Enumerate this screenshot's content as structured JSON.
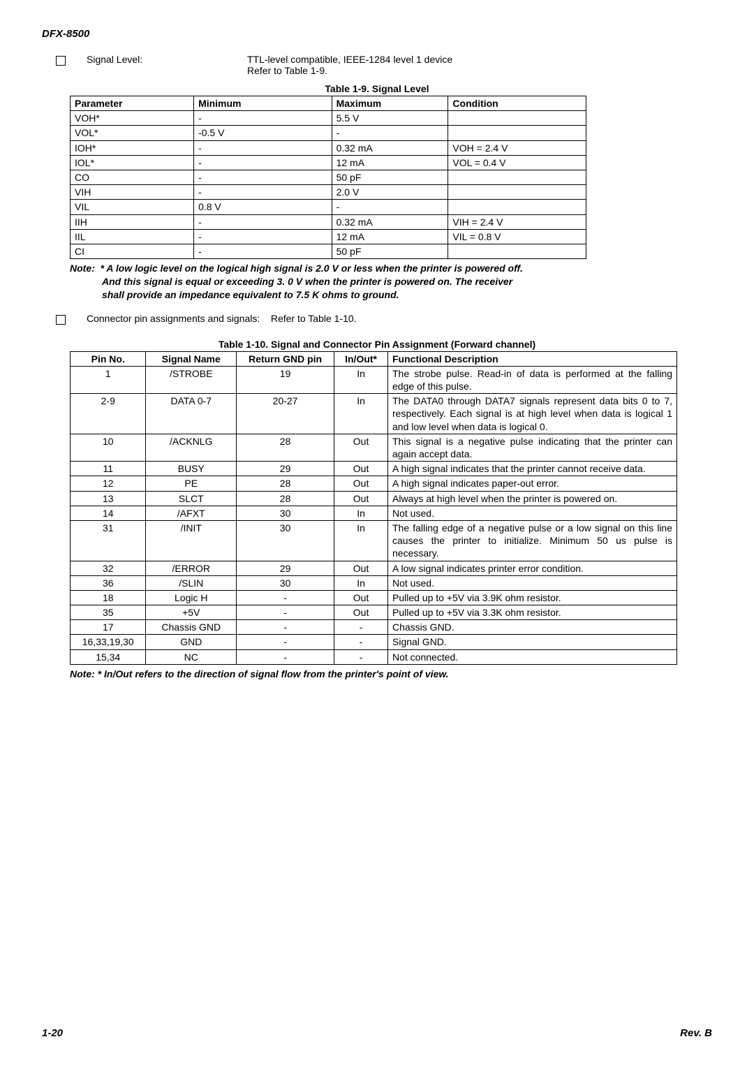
{
  "doc": {
    "header": "DFX-8500",
    "page_no": "1-20",
    "rev": "Rev. B"
  },
  "signal_level": {
    "label": "Signal Level:",
    "desc_l1": "TTL-level compatible, IEEE-1284 level 1 device",
    "desc_l2": "Refer to Table 1-9."
  },
  "table1": {
    "title": "Table 1-9. Signal Level",
    "headers": [
      "Parameter",
      "Minimum",
      "Maximum",
      "Condition"
    ],
    "rows": [
      [
        "VOH*",
        "-",
        "5.5 V",
        ""
      ],
      [
        "VOL*",
        "-0.5 V",
        "-",
        ""
      ],
      [
        "IOH*",
        "-",
        "0.32 mA",
        "VOH = 2.4 V"
      ],
      [
        "IOL*",
        "-",
        "12 mA",
        "VOL = 0.4 V"
      ],
      [
        "CO",
        "-",
        "50 pF",
        ""
      ],
      [
        "VIH",
        "-",
        "2.0 V",
        ""
      ],
      [
        "VIL",
        "0.8 V",
        "-",
        ""
      ],
      [
        "IIH",
        "-",
        "0.32 mA",
        "VIH = 2.4 V"
      ],
      [
        "IIL",
        "-",
        "12 mA",
        "VIL = 0.8 V"
      ],
      [
        "CI",
        "-",
        "50 pF",
        ""
      ]
    ],
    "note_lead": "Note:",
    "note_l1": "* A low logic level on the logical high signal is 2.0 V or less when the printer is powered off.",
    "note_l2": "And this signal is equal or exceeding 3. 0 V when the printer is powered on. The receiver",
    "note_l3": "shall provide an impedance equivalent to 7.5 K ohms to ground."
  },
  "connector": {
    "label": "Connector pin assignments and signals:",
    "desc": "Refer to Table 1-10."
  },
  "table2": {
    "title": "Table 1-10. Signal and Connector Pin Assignment (Forward channel)",
    "headers": [
      "Pin No.",
      "Signal Name",
      "Return GND pin",
      "In/Out*",
      "Functional Description"
    ],
    "rows": [
      [
        "1",
        "/STROBE",
        "19",
        "In",
        "The strobe pulse. Read-in of data is performed at the falling edge of this pulse."
      ],
      [
        "2-9",
        "DATA 0-7",
        "20-27",
        "In",
        "The DATA0 through DATA7 signals represent data bits 0 to 7, respectively. Each signal is at high level when data is logical 1 and low level when data is logical 0."
      ],
      [
        "10",
        "/ACKNLG",
        "28",
        "Out",
        "This signal is a negative pulse indicating that the printer can again accept data."
      ],
      [
        "11",
        "BUSY",
        "29",
        "Out",
        "A high signal indicates that the printer cannot receive data."
      ],
      [
        "12",
        "PE",
        "28",
        "Out",
        "A high signal indicates paper-out error."
      ],
      [
        "13",
        "SLCT",
        "28",
        "Out",
        "Always at high level when the printer is powered on."
      ],
      [
        "14",
        "/AFXT",
        "30",
        "In",
        "Not used."
      ],
      [
        "31",
        "/INIT",
        "30",
        "In",
        "The falling edge of a negative pulse or a low signal on this line causes the printer to initialize. Minimum 50 us pulse is necessary."
      ],
      [
        "32",
        "/ERROR",
        "29",
        "Out",
        "A low signal indicates printer error condition."
      ],
      [
        "36",
        "/SLIN",
        "30",
        "In",
        "Not used."
      ],
      [
        "18",
        "Logic H",
        "-",
        "Out",
        "Pulled up to +5V via 3.9K ohm resistor."
      ],
      [
        "35",
        "+5V",
        "-",
        "Out",
        "Pulled up to +5V via 3.3K ohm resistor."
      ],
      [
        "17",
        "Chassis GND",
        "-",
        "-",
        "Chassis GND."
      ],
      [
        "16,33,19,30",
        "GND",
        "-",
        "-",
        "Signal GND."
      ],
      [
        "15,34",
        "NC",
        "-",
        "-",
        "Not connected."
      ]
    ],
    "note": "Note: * In/Out refers to the direction of signal flow from the printer's point of view."
  }
}
